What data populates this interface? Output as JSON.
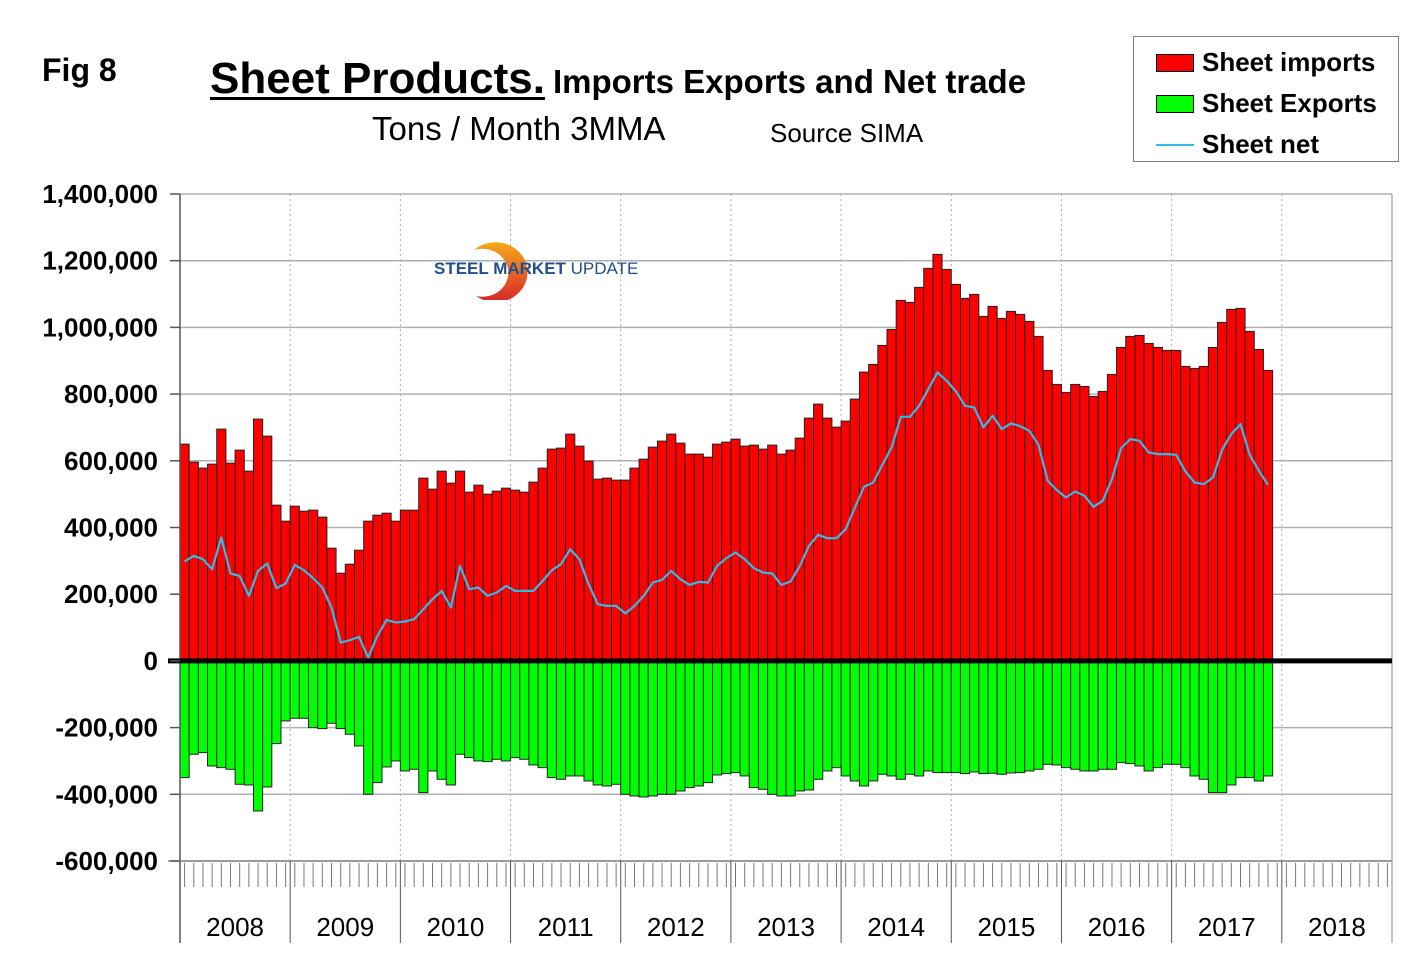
{
  "header": {
    "fig_label": "Fig 8",
    "title_main": "Sheet Products.",
    "title_rest": "Imports Exports and Net trade",
    "subtitle": "Tons / Month 3MMA",
    "source": "Source SIMA"
  },
  "logo": {
    "text_bold": "STEEL MARKET",
    "text_light": "UPDATE"
  },
  "colors": {
    "imports": "#ff0000",
    "exports": "#00ff00",
    "net": "#33bbe8",
    "zero_line": "#000000",
    "grid": "#b0b0b0"
  },
  "chart_data": {
    "type": "bar",
    "title": "Sheet Products. Imports Exports and Net trade",
    "subtitle": "Tons / Month 3MMA",
    "xlabel": "",
    "ylabel": "",
    "ylim": [
      -600000,
      1400000
    ],
    "yticks": [
      1400000,
      1200000,
      1000000,
      800000,
      600000,
      400000,
      200000,
      0,
      -200000,
      -400000,
      -600000
    ],
    "ytick_labels": [
      "1,400,000",
      "1,200,000",
      "1,000,000",
      "800,000",
      "600,000",
      "400,000",
      "200,000",
      "0",
      "-200,000",
      "-400,000",
      "-600,000"
    ],
    "years": [
      "2008",
      "2009",
      "2010",
      "2011",
      "2012",
      "2013",
      "2014",
      "2015",
      "2016",
      "2017",
      "2018"
    ],
    "start": "2008-01",
    "grid": true,
    "legend_position": "top-right",
    "series": [
      {
        "name": "Sheet imports",
        "type": "bar",
        "values": [
          650000,
          596000,
          578000,
          590000,
          695000,
          593000,
          632000,
          569000,
          725000,
          674000,
          467000,
          419000,
          464000,
          449000,
          452000,
          431000,
          338000,
          263000,
          290000,
          332000,
          419000,
          437000,
          443000,
          419000,
          452000,
          452000,
          548000,
          515000,
          569000,
          533000,
          569000,
          506000,
          527000,
          500000,
          509000,
          518000,
          512000,
          506000,
          536000,
          578000,
          635000,
          638000,
          680000,
          644000,
          599000,
          545000,
          548000,
          542000,
          542000,
          578000,
          605000,
          641000,
          659000,
          680000,
          653000,
          620000,
          620000,
          611000,
          650000,
          656000,
          665000,
          644000,
          647000,
          635000,
          647000,
          620000,
          632000,
          668000,
          728000,
          770000,
          728000,
          701000,
          719000,
          785000,
          866000,
          889000,
          946000,
          994000,
          1081000,
          1075000,
          1120000,
          1177000,
          1219000,
          1174000,
          1129000,
          1087000,
          1099000,
          1033000,
          1063000,
          1027000,
          1048000,
          1039000,
          1018000,
          973000,
          871000,
          829000,
          805000,
          829000,
          823000,
          793000,
          808000,
          859000,
          940000,
          973000,
          976000,
          952000,
          940000,
          931000,
          931000,
          883000,
          877000,
          883000,
          940000,
          1015000,
          1054000,
          1057000,
          988000,
          934000,
          871000
        ]
      },
      {
        "name": "Sheet Exports",
        "type": "bar",
        "values": [
          -350000,
          -280000,
          -275000,
          -315000,
          -320000,
          -325000,
          -370000,
          -372000,
          -450000,
          -378000,
          -248000,
          -180000,
          -172000,
          -172000,
          -200000,
          -203000,
          -187000,
          -203000,
          -220000,
          -255000,
          -400000,
          -365000,
          -318000,
          -300000,
          -330000,
          -325000,
          -395000,
          -330000,
          -355000,
          -372000,
          -280000,
          -290000,
          -300000,
          -302000,
          -295000,
          -300000,
          -290000,
          -295000,
          -312000,
          -320000,
          -350000,
          -355000,
          -345000,
          -345000,
          -360000,
          -372000,
          -375000,
          -370000,
          -400000,
          -405000,
          -408000,
          -405000,
          -400000,
          -400000,
          -390000,
          -380000,
          -375000,
          -365000,
          -342000,
          -338000,
          -335000,
          -345000,
          -380000,
          -385000,
          -400000,
          -405000,
          -405000,
          -390000,
          -387000,
          -355000,
          -330000,
          -320000,
          -345000,
          -360000,
          -375000,
          -360000,
          -340000,
          -345000,
          -355000,
          -340000,
          -345000,
          -330000,
          -335000,
          -335000,
          -335000,
          -338000,
          -333000,
          -338000,
          -337000,
          -340000,
          -336000,
          -335000,
          -330000,
          -325000,
          -310000,
          -312000,
          -320000,
          -325000,
          -330000,
          -330000,
          -325000,
          -325000,
          -305000,
          -308000,
          -315000,
          -330000,
          -320000,
          -310000,
          -310000,
          -320000,
          -345000,
          -355000,
          -395000,
          -395000,
          -372000,
          -350000,
          -350000,
          -360000,
          -345000
        ]
      },
      {
        "name": "Sheet net",
        "type": "line",
        "values": [
          298000,
          315000,
          305000,
          275000,
          370000,
          262000,
          255000,
          195000,
          270000,
          292000,
          218000,
          232000,
          288000,
          272000,
          248000,
          220000,
          160000,
          55000,
          62000,
          72000,
          10000,
          75000,
          123000,
          115000,
          118000,
          125000,
          155000,
          185000,
          210000,
          160000,
          285000,
          215000,
          220000,
          195000,
          205000,
          225000,
          210000,
          210000,
          210000,
          240000,
          272000,
          290000,
          335000,
          305000,
          230000,
          170000,
          165000,
          165000,
          142000,
          165000,
          195000,
          235000,
          243000,
          270000,
          245000,
          228000,
          237000,
          235000,
          285000,
          308000,
          325000,
          305000,
          278000,
          265000,
          262000,
          228000,
          238000,
          285000,
          345000,
          378000,
          368000,
          368000,
          395000,
          460000,
          522000,
          535000,
          588000,
          640000,
          732000,
          732000,
          765000,
          815000,
          865000,
          840000,
          808000,
          765000,
          760000,
          700000,
          735000,
          695000,
          712000,
          704000,
          690000,
          648000,
          540000,
          512000,
          490000,
          508000,
          495000,
          462000,
          480000,
          545000,
          638000,
          665000,
          660000,
          625000,
          620000,
          620000,
          618000,
          568000,
          535000,
          530000,
          550000,
          633000,
          680000,
          710000,
          618000,
          570000,
          528000
        ]
      }
    ]
  }
}
